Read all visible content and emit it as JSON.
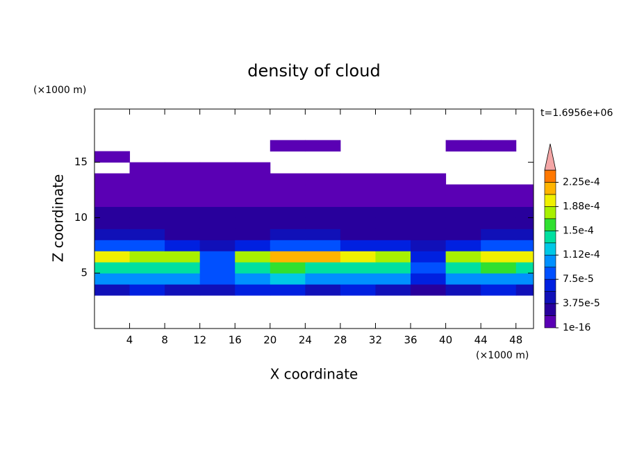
{
  "chart_data": {
    "type": "contour",
    "title": "density of cloud",
    "x_label": "X coordinate",
    "y_label": "Z coordinate",
    "x_unit": "(×1000 m)",
    "y_unit": "(×1000 m)",
    "annotation": "t=1.6956e+06",
    "xlim": [
      0,
      50
    ],
    "ylim": [
      0,
      19.8
    ],
    "xticks": [
      4,
      8,
      12,
      16,
      20,
      24,
      28,
      32,
      36,
      40,
      44,
      48
    ],
    "yticks": [
      5,
      10,
      15
    ],
    "x": [
      2,
      6,
      10,
      14,
      18,
      22,
      26,
      30,
      34,
      38,
      42,
      46,
      50
    ],
    "z": [
      3.5,
      4.5,
      5.5,
      6.5,
      7.5,
      8.5,
      9.5,
      10.5,
      11.5,
      12.5,
      13.5,
      14.5,
      15.5,
      16.5
    ],
    "values": [
      [
        5e-05,
        6e-05,
        5e-05,
        4e-05,
        6e-05,
        6e-05,
        5e-05,
        6e-05,
        5e-05,
        3e-05,
        5e-05,
        6e-05,
        5e-05
      ],
      [
        0.00011,
        0.000105,
        0.0001,
        8e-05,
        0.00011,
        0.000115,
        0.00011,
        0.00011,
        0.000105,
        7e-05,
        0.000105,
        0.00011,
        0.00011
      ],
      [
        0.000145,
        0.00014,
        0.000135,
        9e-05,
        0.00014,
        0.00015,
        0.000145,
        0.000145,
        0.000135,
        9e-05,
        0.00014,
        0.00015,
        0.000145
      ],
      [
        0.000195,
        0.000185,
        0.000175,
        8e-05,
        0.00018,
        0.00021,
        0.000215,
        0.000195,
        0.00017,
        6e-05,
        0.000175,
        0.000205,
        0.000195
      ],
      [
        9e-05,
        8e-05,
        7e-05,
        4e-05,
        6e-05,
        8e-05,
        8e-05,
        7e-05,
        6e-05,
        4e-05,
        6e-05,
        8e-05,
        8e-05
      ],
      [
        4.5e-05,
        4e-05,
        3.5e-05,
        3e-05,
        3.5e-05,
        4e-05,
        4e-05,
        3.5e-05,
        3e-05,
        3e-05,
        3.5e-05,
        4e-05,
        4e-05
      ],
      [
        3e-05,
        2.5e-05,
        2.5e-05,
        2.5e-05,
        3e-05,
        3e-05,
        3e-05,
        3e-05,
        2.5e-05,
        2.5e-05,
        3e-05,
        2.5e-05,
        2.5e-05
      ],
      [
        2.5e-05,
        2e-05,
        2e-05,
        2e-05,
        2.5e-05,
        2.5e-05,
        2.5e-05,
        2.5e-05,
        2e-05,
        2e-05,
        2e-05,
        2e-05,
        2e-05
      ],
      [
        1.5e-05,
        1.5e-05,
        1.5e-05,
        1.5e-05,
        1.5e-05,
        1.5e-05,
        1.5e-05,
        1.5e-05,
        1.5e-05,
        1.5e-05,
        1.5e-05,
        1.5e-05,
        1.5e-05
      ],
      [
        1e-05,
        1e-05,
        1e-05,
        1e-05,
        1e-05,
        1e-05,
        1e-05,
        1e-05,
        1e-05,
        1e-05,
        1e-05,
        1e-05,
        1e-05
      ],
      [
        1e-05,
        1e-05,
        1e-05,
        1e-05,
        1e-05,
        1e-05,
        1e-05,
        1e-05,
        1e-05,
        1e-05,
        null,
        null,
        null
      ],
      [
        null,
        1e-05,
        1e-05,
        1e-05,
        1e-05,
        null,
        null,
        null,
        null,
        null,
        null,
        null,
        null
      ],
      [
        1e-05,
        null,
        null,
        null,
        null,
        null,
        null,
        null,
        null,
        null,
        null,
        null,
        null
      ],
      [
        null,
        null,
        null,
        null,
        null,
        1e-05,
        1e-05,
        null,
        null,
        null,
        1e-05,
        1e-05,
        null
      ]
    ],
    "levels": [
      1e-16,
      1.875e-05,
      3.75e-05,
      5.625e-05,
      7.5e-05,
      9.375e-05,
      0.0001125,
      0.00013125,
      0.00015,
      0.00016875,
      0.0001875,
      0.00020625,
      0.000225,
      0.00024375
    ],
    "colors": [
      "#5a00b4",
      "#28009c",
      "#1010b8",
      "#0020e0",
      "#0050ff",
      "#0090ff",
      "#00c8e6",
      "#00e0a0",
      "#30e030",
      "#a8f000",
      "#f0f000",
      "#ffb400",
      "#ff7800"
    ],
    "over_color": "#f4a6a6",
    "colorbar_ticks": [
      {
        "value": 1e-16,
        "label": "1e-16"
      },
      {
        "value": 3.75e-05,
        "label": "3.75e-5"
      },
      {
        "value": 7.5e-05,
        "label": "7.5e-5"
      },
      {
        "value": 0.0001125,
        "label": "1.12e-4"
      },
      {
        "value": 0.00015,
        "label": "1.5e-4"
      },
      {
        "value": 0.0001875,
        "label": "1.88e-4"
      },
      {
        "value": 0.000225,
        "label": "2.25e-4"
      }
    ]
  }
}
